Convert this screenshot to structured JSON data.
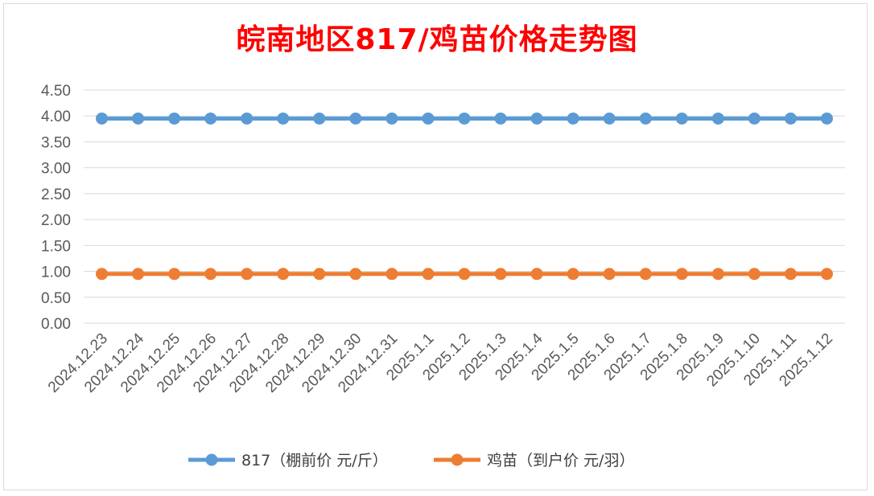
{
  "chart_data": {
    "type": "line",
    "title": "皖南地区817/鸡苗价格走势图",
    "xlabel": "",
    "ylabel": "",
    "ylim": [
      0,
      4.5
    ],
    "yticks": [
      "0.00",
      "0.50",
      "1.00",
      "1.50",
      "2.00",
      "2.50",
      "3.00",
      "3.50",
      "4.00",
      "4.50"
    ],
    "grid": true,
    "legend_position": "bottom",
    "categories": [
      "2024.12.23",
      "2024.12.24",
      "2024.12.25",
      "2024.12.26",
      "2024.12.27",
      "2024.12.28",
      "2024.12.29",
      "2024.12.30",
      "2024.12.31",
      "2025.1.1",
      "2025.1.2",
      "2025.1.3",
      "2025.1.4",
      "2025.1.5",
      "2025.1.6",
      "2025.1.7",
      "2025.1.8",
      "2025.1.9",
      "2025.1.10",
      "2025.1.11",
      "2025.1.12"
    ],
    "series": [
      {
        "name": "817（棚前价 元/斤）",
        "color": "#5b9bd5",
        "values": [
          3.95,
          3.95,
          3.95,
          3.95,
          3.95,
          3.95,
          3.95,
          3.95,
          3.95,
          3.95,
          3.95,
          3.95,
          3.95,
          3.95,
          3.95,
          3.95,
          3.95,
          3.95,
          3.95,
          3.95,
          3.95
        ]
      },
      {
        "name": "鸡苗（到户价 元/羽）",
        "color": "#ed7d31",
        "values": [
          0.95,
          0.95,
          0.95,
          0.95,
          0.95,
          0.95,
          0.95,
          0.95,
          0.95,
          0.95,
          0.95,
          0.95,
          0.95,
          0.95,
          0.95,
          0.95,
          0.95,
          0.95,
          0.95,
          0.95,
          0.95
        ]
      }
    ]
  }
}
